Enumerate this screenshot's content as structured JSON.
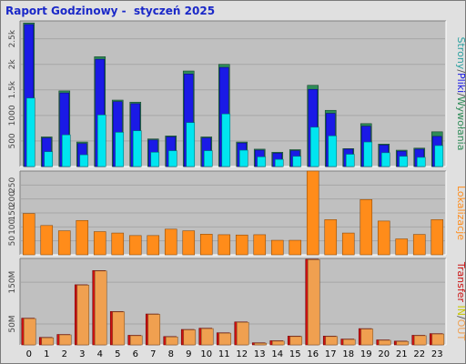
{
  "title": "Raport Godzinowy -  styczeń 2025",
  "colors": {
    "background": "#e0e0e0",
    "plot_bg": "#c0c0c0",
    "pages": "#2e8b57",
    "files": "#1a1ae6",
    "hits": "#00e5f0",
    "visits": "#ff8c1a",
    "transfer_in": "#cc1111",
    "transfer_out": "#f0a050",
    "title": "#1a28c8"
  },
  "side_labels": {
    "top": [
      {
        "text": "Strony",
        "color": "#2aa0a0"
      },
      {
        "text": "/",
        "color": "#555555"
      },
      {
        "text": "Pliki",
        "color": "#1a1ae6"
      },
      {
        "text": "/",
        "color": "#555555"
      },
      {
        "text": "Wywołania",
        "color": "#2e8b57"
      }
    ],
    "middle": [
      {
        "text": "Lokalizacje",
        "color": "#ff8c1a"
      }
    ],
    "bottom": [
      {
        "text": "Transfer",
        "color": "#cc1111"
      },
      {
        "text": "  IN",
        "color": "#c8c800"
      },
      {
        "text": "/",
        "color": "#555555"
      },
      {
        "text": "OUT",
        "color": "#f0a050"
      }
    ]
  },
  "chart_data": [
    {
      "type": "bar",
      "categories": [
        "0",
        "1",
        "2",
        "3",
        "4",
        "5",
        "6",
        "7",
        "8",
        "9",
        "10",
        "11",
        "12",
        "13",
        "14",
        "15",
        "16",
        "17",
        "18",
        "19",
        "20",
        "21",
        "22",
        "23"
      ],
      "y_ticks": [
        "500",
        "1000",
        "1.5k",
        "2k",
        "2.5k"
      ],
      "y_tick_values": [
        500,
        1000,
        1500,
        2000,
        2500
      ],
      "ylim": [
        0,
        2850
      ],
      "series": [
        {
          "name": "Wywołania",
          "values": [
            2810,
            580,
            1480,
            480,
            2150,
            1300,
            1260,
            540,
            600,
            1870,
            580,
            2000,
            480,
            340,
            280,
            330,
            1590,
            1100,
            350,
            840,
            440,
            320,
            360,
            680
          ]
        },
        {
          "name": "Pliki",
          "values": [
            2780,
            560,
            1440,
            450,
            2100,
            1270,
            1230,
            520,
            580,
            1810,
            560,
            1940,
            460,
            320,
            260,
            310,
            1510,
            1040,
            340,
            790,
            420,
            300,
            340,
            590
          ]
        },
        {
          "name": "Strony",
          "values": [
            1340,
            290,
            620,
            230,
            1010,
            670,
            700,
            280,
            310,
            860,
            310,
            1030,
            320,
            190,
            140,
            200,
            770,
            600,
            240,
            480,
            270,
            200,
            180,
            410
          ]
        }
      ]
    },
    {
      "type": "bar",
      "categories": [
        "0",
        "1",
        "2",
        "3",
        "4",
        "5",
        "6",
        "7",
        "8",
        "9",
        "10",
        "11",
        "12",
        "13",
        "14",
        "15",
        "16",
        "17",
        "18",
        "19",
        "20",
        "21",
        "22",
        "23"
      ],
      "y_ticks": [
        "50",
        "100",
        "150",
        "200",
        "250"
      ],
      "y_tick_values": [
        50,
        100,
        150,
        200,
        250
      ],
      "ylim": [
        0,
        300
      ],
      "series": [
        {
          "name": "Lokalizacje",
          "values": [
            148,
            105,
            86,
            123,
            83,
            78,
            69,
            69,
            92,
            86,
            74,
            72,
            71,
            72,
            52,
            52,
            300,
            126,
            78,
            198,
            121,
            57,
            73,
            126
          ]
        }
      ]
    },
    {
      "type": "bar",
      "categories": [
        "0",
        "1",
        "2",
        "3",
        "4",
        "5",
        "6",
        "7",
        "8",
        "9",
        "10",
        "11",
        "12",
        "13",
        "14",
        "15",
        "16",
        "17",
        "18",
        "19",
        "20",
        "21",
        "22",
        "23"
      ],
      "y_ticks": [
        "50M",
        "150M"
      ],
      "y_tick_values": [
        50,
        150
      ],
      "ylim": [
        0,
        207
      ],
      "series": [
        {
          "name": "IN",
          "values": [
            64,
            18,
            25,
            144,
            178,
            80,
            23,
            74,
            20,
            37,
            40,
            29,
            55,
            5,
            10,
            21,
            205,
            21,
            14,
            39,
            12,
            9,
            23,
            27
          ]
        },
        {
          "name": "OUT",
          "values": [
            63,
            17,
            24,
            143,
            177,
            79,
            22,
            73,
            19,
            36,
            39,
            28,
            54,
            4,
            9,
            20,
            204,
            20,
            13,
            38,
            11,
            8,
            22,
            26
          ]
        }
      ]
    }
  ]
}
